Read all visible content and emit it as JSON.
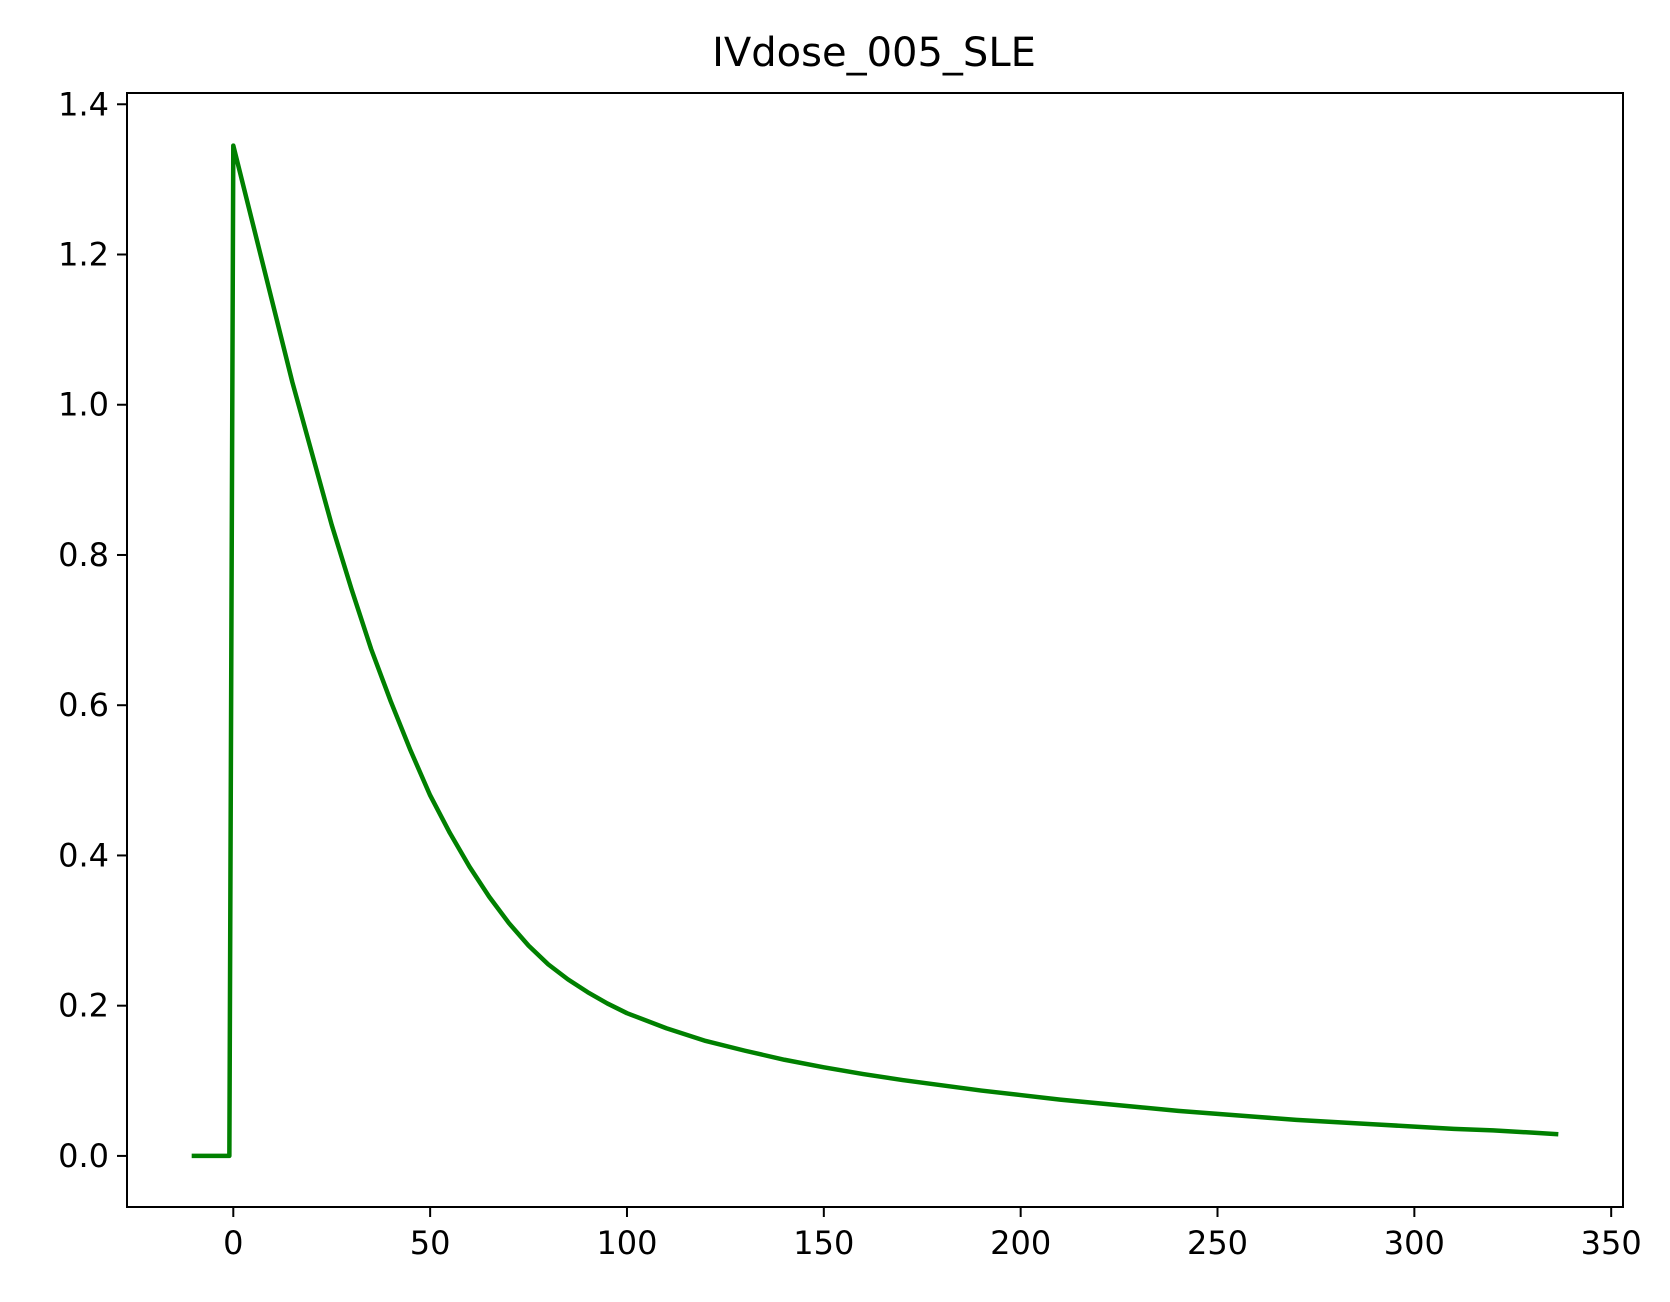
{
  "chart_data": {
    "type": "line",
    "title": "IVdose_005_SLE",
    "xlabel": "",
    "ylabel": "",
    "xlim": [
      -27,
      353
    ],
    "ylim": [
      -0.068,
      1.415
    ],
    "x_ticks": [
      0,
      50,
      100,
      150,
      200,
      250,
      300,
      350
    ],
    "x_tick_labels": [
      "0",
      "50",
      "100",
      "150",
      "200",
      "250",
      "300",
      "350"
    ],
    "y_ticks": [
      0.0,
      0.2,
      0.4,
      0.6,
      0.8,
      1.0,
      1.2,
      1.4
    ],
    "y_tick_labels": [
      "0.0",
      "0.2",
      "0.4",
      "0.6",
      "0.8",
      "1.0",
      "1.2",
      "1.4"
    ],
    "grid": false,
    "line_color": "#008000",
    "series": [
      {
        "x": [
          -10,
          -1,
          0,
          5,
          10,
          15,
          20,
          25,
          30,
          35,
          40,
          45,
          50,
          55,
          60,
          65,
          70,
          75,
          80,
          85,
          90,
          95,
          100,
          110,
          120,
          130,
          140,
          150,
          160,
          170,
          180,
          190,
          200,
          210,
          220,
          230,
          240,
          250,
          260,
          270,
          280,
          290,
          300,
          310,
          320,
          330,
          336
        ],
        "y": [
          0.0,
          0.0,
          1.345,
          1.24,
          1.135,
          1.03,
          0.935,
          0.84,
          0.755,
          0.675,
          0.605,
          0.54,
          0.48,
          0.43,
          0.385,
          0.345,
          0.31,
          0.28,
          0.255,
          0.235,
          0.218,
          0.203,
          0.19,
          0.17,
          0.153,
          0.14,
          0.128,
          0.118,
          0.109,
          0.101,
          0.094,
          0.087,
          0.081,
          0.075,
          0.07,
          0.065,
          0.06,
          0.056,
          0.052,
          0.048,
          0.045,
          0.042,
          0.039,
          0.036,
          0.034,
          0.031,
          0.029
        ]
      }
    ]
  }
}
